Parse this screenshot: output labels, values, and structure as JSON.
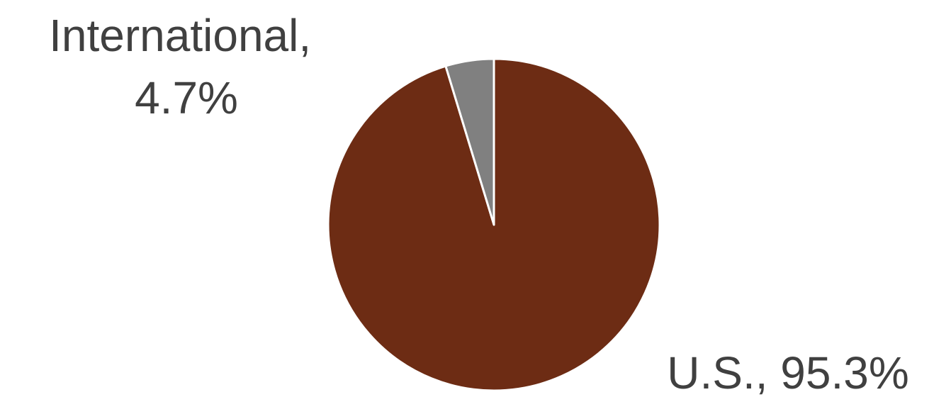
{
  "chart_data": {
    "type": "pie",
    "title": "",
    "slices": [
      {
        "label": "U.S.",
        "value": 95.3,
        "display": "U.S., 95.3%",
        "color": "#6d2c14"
      },
      {
        "label": "International",
        "value": 4.7,
        "display_lines": [
          "International,",
          "4.7%"
        ],
        "color": "#808080"
      }
    ],
    "start_angle": "12 o'clock",
    "direction": "clockwise",
    "slice_border_color": "#ffffff",
    "label_color": "#404040",
    "legend": "none"
  }
}
